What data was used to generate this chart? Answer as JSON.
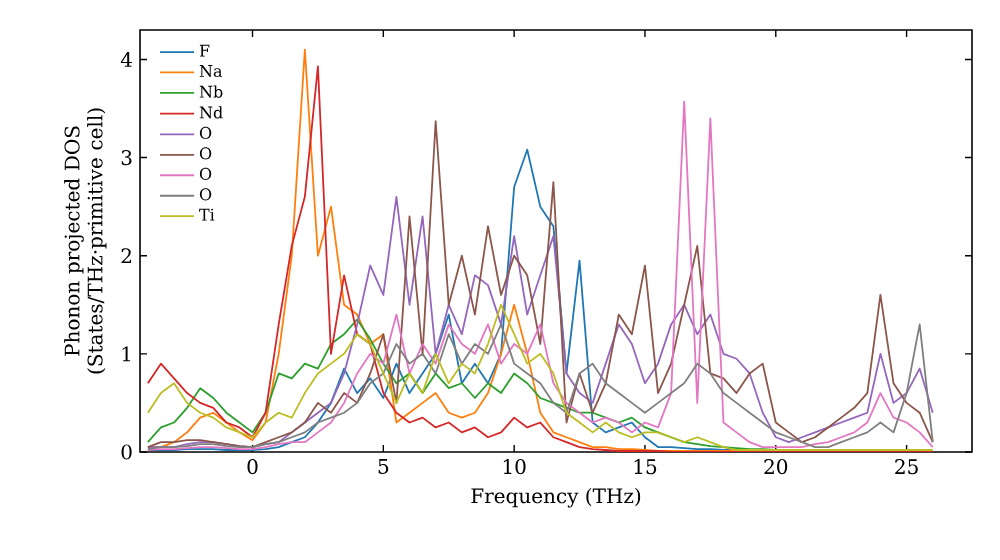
{
  "chart_data": {
    "type": "line",
    "xlabel": "Frequency (THz)",
    "ylabel": "Phonon projected DOS\n(States/THz·primitive cell)",
    "x": [
      -4,
      -3.5,
      -3,
      -2.5,
      -2,
      -1.5,
      -1,
      -0.5,
      0,
      0.5,
      1,
      1.5,
      2,
      2.5,
      3,
      3.5,
      4,
      4.5,
      5,
      5.5,
      6,
      6.5,
      7,
      7.5,
      8,
      8.5,
      9,
      9.5,
      10,
      10.5,
      11,
      11.5,
      12,
      12.5,
      13,
      13.5,
      14,
      14.5,
      15,
      15.5,
      16,
      16.5,
      17,
      17.5,
      18,
      18.5,
      19,
      19.5,
      20,
      20.5,
      21,
      21.5,
      22,
      22.5,
      23,
      23.5,
      24,
      24.5,
      25,
      25.5,
      26
    ],
    "xlim": [
      -4.3,
      27.5
    ],
    "xticks": [
      0,
      5,
      10,
      15,
      20,
      25
    ],
    "ylim": [
      0,
      4.3
    ],
    "yticks": [
      0,
      1,
      2,
      3,
      4
    ],
    "legend": "top left",
    "grid": false,
    "marker": "none",
    "line_style": "solid",
    "series": [
      {
        "name": "F",
        "color": "#1f77b4",
        "values": [
          0.02,
          0.02,
          0.02,
          0.03,
          0.03,
          0.03,
          0.02,
          0.02,
          0.02,
          0.03,
          0.05,
          0.1,
          0.15,
          0.3,
          0.5,
          0.85,
          0.6,
          0.75,
          0.55,
          0.9,
          0.6,
          0.8,
          1.0,
          1.4,
          0.7,
          0.9,
          0.7,
          1.0,
          2.7,
          3.08,
          2.5,
          2.3,
          0.8,
          1.95,
          0.3,
          0.2,
          0.25,
          0.3,
          0.15,
          0.05,
          0.05,
          0.04,
          0.03,
          0.03,
          0.02,
          0.02,
          0.02,
          null,
          null,
          null,
          null,
          null,
          null,
          null,
          null,
          null,
          null,
          null,
          null,
          null,
          null
        ]
      },
      {
        "name": "Na",
        "color": "#ff7f0e",
        "values": [
          0.05,
          0.05,
          0.1,
          0.2,
          0.35,
          0.4,
          0.3,
          0.2,
          0.12,
          0.3,
          1.0,
          2.0,
          4.1,
          2.0,
          2.5,
          1.5,
          1.4,
          1.1,
          1.2,
          0.3,
          0.4,
          0.5,
          0.6,
          0.4,
          0.35,
          0.4,
          0.6,
          1.0,
          1.5,
          1.0,
          0.4,
          0.2,
          0.15,
          0.1,
          0.05,
          0.05,
          0.03,
          0.03,
          0.02,
          0.01,
          0.01,
          0.01,
          0.01,
          0.01,
          0.01,
          0.01,
          0.01,
          null,
          null,
          null,
          null,
          null,
          null,
          null,
          null,
          null,
          null,
          null,
          null,
          null,
          null
        ]
      },
      {
        "name": "Nb",
        "color": "#2ca02c",
        "values": [
          0.1,
          0.25,
          0.3,
          0.45,
          0.65,
          0.55,
          0.4,
          0.3,
          0.2,
          0.4,
          0.8,
          0.75,
          0.9,
          0.85,
          1.1,
          1.2,
          1.35,
          1.15,
          0.9,
          0.7,
          0.8,
          0.6,
          0.8,
          0.65,
          0.7,
          0.55,
          0.7,
          0.6,
          0.8,
          0.7,
          0.55,
          0.5,
          0.45,
          0.4,
          0.4,
          0.35,
          0.3,
          0.35,
          0.25,
          0.2,
          0.15,
          0.1,
          0.08,
          0.06,
          0.05,
          0.04,
          0.03,
          0.03,
          0.02,
          0.01,
          null,
          null,
          null,
          null,
          null,
          null,
          null,
          null,
          null,
          null,
          null
        ]
      },
      {
        "name": "Nd",
        "color": "#d62728",
        "values": [
          0.7,
          0.9,
          0.75,
          0.6,
          0.5,
          0.45,
          0.3,
          0.25,
          0.15,
          0.4,
          1.3,
          2.1,
          2.6,
          3.93,
          1.0,
          1.8,
          1.2,
          1.1,
          0.6,
          0.4,
          0.3,
          0.35,
          0.25,
          0.3,
          0.2,
          0.25,
          0.15,
          0.2,
          0.35,
          0.25,
          0.3,
          0.15,
          0.1,
          0.05,
          0.03,
          0.02,
          0.01,
          0.01,
          0.01,
          0.01,
          0,
          0,
          0,
          0,
          0,
          0,
          0,
          0,
          0,
          0,
          0,
          0,
          0,
          0,
          0,
          0,
          0,
          0,
          0,
          0,
          0
        ]
      },
      {
        "name": "O",
        "color": "#9467bd",
        "values": [
          0.05,
          0.05,
          0.05,
          0.08,
          0.1,
          0.1,
          0.08,
          0.06,
          0.05,
          0.08,
          0.1,
          0.2,
          0.3,
          0.4,
          0.5,
          0.8,
          1.3,
          1.9,
          1.6,
          2.6,
          1.5,
          2.4,
          1.0,
          1.5,
          1.2,
          1.8,
          1.7,
          1.3,
          2.2,
          1.4,
          1.8,
          2.2,
          0.8,
          0.6,
          0.5,
          0.9,
          1.3,
          1.1,
          0.7,
          0.9,
          1.3,
          1.5,
          1.2,
          1.4,
          1.0,
          0.95,
          0.8,
          0.4,
          0.15,
          0.1,
          0.15,
          0.2,
          0.25,
          0.3,
          0.35,
          0.4,
          1.0,
          0.5,
          0.6,
          0.85,
          0.4
        ]
      },
      {
        "name": "O",
        "color": "#8c564b",
        "values": [
          0.05,
          0.1,
          0.1,
          0.12,
          0.12,
          0.1,
          0.08,
          0.06,
          0.05,
          0.1,
          0.15,
          0.2,
          0.3,
          0.5,
          0.4,
          0.6,
          0.5,
          0.8,
          1.2,
          0.5,
          2.4,
          1.0,
          3.37,
          1.5,
          2.0,
          1.4,
          2.3,
          1.6,
          2.0,
          1.8,
          1.1,
          2.75,
          0.3,
          0.8,
          0.4,
          0.7,
          1.4,
          1.2,
          1.9,
          0.6,
          0.9,
          1.5,
          2.1,
          0.8,
          0.75,
          0.6,
          0.8,
          0.9,
          0.3,
          0.2,
          0.1,
          0.15,
          0.25,
          0.35,
          0.45,
          0.6,
          1.6,
          0.7,
          0.5,
          0.4,
          0.1
        ]
      },
      {
        "name": "O",
        "color": "#e377c2",
        "values": [
          0.02,
          0.03,
          0.03,
          0.04,
          0.05,
          0.05,
          0.04,
          0.03,
          0.03,
          0.05,
          0.08,
          0.1,
          0.1,
          0.2,
          0.3,
          0.5,
          0.8,
          1.0,
          0.9,
          1.4,
          0.8,
          1.1,
          0.9,
          1.3,
          1.1,
          1.0,
          1.3,
          0.9,
          1.1,
          1.0,
          1.3,
          0.7,
          0.5,
          0.4,
          0.3,
          0.35,
          0.3,
          0.2,
          0.3,
          0.25,
          0.6,
          3.57,
          0.5,
          3.4,
          0.3,
          0.2,
          0.1,
          0.05,
          0.05,
          0.05,
          0.05,
          0.08,
          0.1,
          0.15,
          0.2,
          0.3,
          0.6,
          0.35,
          0.3,
          0.2,
          0.05
        ]
      },
      {
        "name": "O",
        "color": "#7f7f7f",
        "values": [
          0.03,
          0.05,
          0.05,
          0.06,
          0.08,
          0.08,
          0.06,
          0.05,
          0.05,
          0.08,
          0.1,
          0.15,
          0.2,
          0.3,
          0.35,
          0.4,
          0.5,
          0.7,
          0.8,
          1.1,
          0.9,
          1.0,
          0.8,
          1.2,
          0.9,
          1.1,
          1.0,
          1.3,
          0.9,
          0.8,
          0.7,
          0.5,
          0.4,
          0.8,
          0.9,
          0.7,
          0.6,
          0.5,
          0.4,
          0.5,
          0.6,
          0.7,
          0.9,
          0.8,
          0.6,
          0.5,
          0.4,
          0.3,
          0.2,
          0.15,
          0.1,
          0.05,
          0.05,
          0.1,
          0.15,
          0.2,
          0.3,
          0.2,
          0.6,
          1.3,
          0.1
        ]
      },
      {
        "name": "Ti",
        "color": "#bcbd22",
        "values": [
          0.4,
          0.6,
          0.7,
          0.5,
          0.4,
          0.35,
          0.25,
          0.2,
          0.15,
          0.3,
          0.4,
          0.35,
          0.6,
          0.8,
          0.9,
          1.0,
          1.2,
          1.1,
          0.8,
          0.5,
          0.8,
          0.6,
          1.0,
          0.7,
          0.9,
          0.8,
          1.1,
          1.5,
          1.2,
          0.9,
          1.0,
          0.8,
          0.4,
          0.3,
          0.2,
          0.3,
          0.2,
          0.15,
          0.2,
          0.2,
          0.15,
          0.1,
          0.15,
          0.1,
          0.05,
          0.02,
          0.02,
          0.02,
          0.02,
          0.02,
          0.02,
          0.02,
          0.02,
          0.02,
          0.02,
          0.02,
          0.02,
          0.02,
          0.02,
          0.02,
          0.02
        ]
      }
    ]
  }
}
